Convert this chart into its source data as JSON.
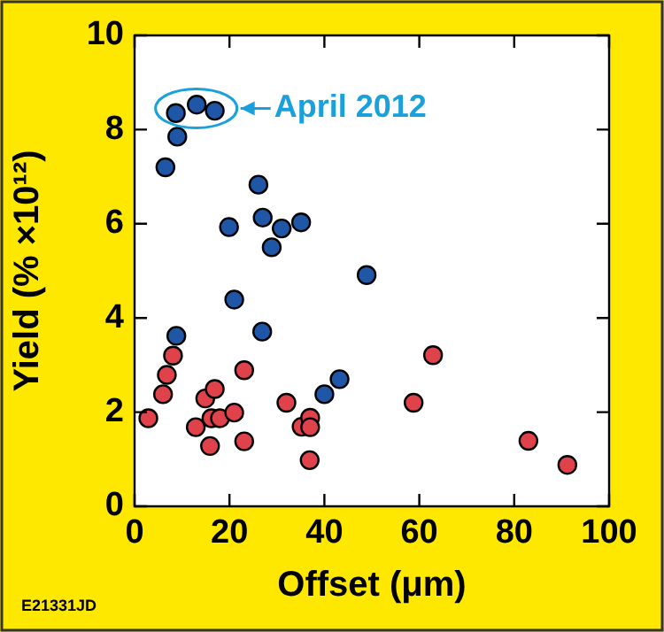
{
  "chart_data": {
    "type": "scatter",
    "xlabel": "Offset (μm)",
    "ylabel": "Yield (% ×10¹²)",
    "xlim": [
      0,
      100
    ],
    "xticks": [
      0,
      20,
      40,
      60,
      80,
      100
    ],
    "ylim": [
      0,
      10
    ],
    "yticks": [
      0,
      2,
      4,
      6,
      8,
      10
    ],
    "grid": false,
    "legend": false,
    "marker": "circle",
    "series": [
      {
        "color": "#1f56a6",
        "x": [
          6.5,
          9.0,
          8.7,
          13.1,
          16.9,
          26.1,
          19.9,
          27.0,
          31.0,
          28.9,
          35.1,
          48.9,
          21.0,
          26.9,
          8.8,
          40.0,
          43.2
        ],
        "values": [
          7.2,
          7.85,
          8.35,
          8.53,
          8.4,
          6.83,
          5.93,
          6.13,
          5.9,
          5.5,
          6.03,
          4.91,
          4.39,
          3.71,
          3.62,
          2.38,
          2.7
        ]
      },
      {
        "color": "#e0424c",
        "x": [
          2.9,
          6.0,
          6.8,
          8.1,
          14.9,
          16.9,
          12.9,
          16.2,
          18.0,
          21.0,
          15.9,
          23.1,
          23.1,
          32.0,
          35.2,
          37.0,
          37.0,
          36.9,
          62.9,
          58.8,
          83.0,
          91.2
        ],
        "values": [
          1.87,
          2.38,
          2.79,
          3.2,
          2.29,
          2.49,
          1.68,
          1.87,
          1.87,
          1.99,
          1.28,
          2.89,
          1.38,
          2.2,
          1.69,
          1.88,
          1.68,
          0.98,
          3.21,
          2.2,
          1.39,
          0.88
        ]
      }
    ],
    "annotations": [
      {
        "text": "April 2012",
        "x": 13,
        "y": 8.45
      },
      "E21331JD"
    ]
  }
}
